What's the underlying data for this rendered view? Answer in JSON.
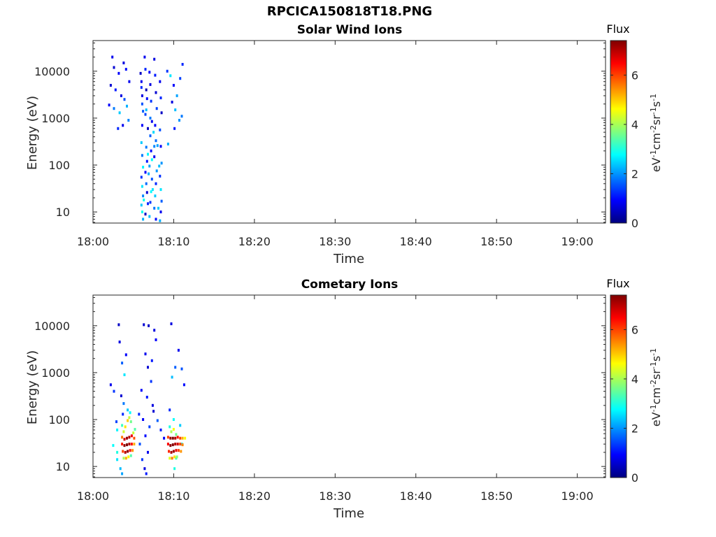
{
  "figure": {
    "title": "RPCICA150818T18.PNG"
  },
  "colormap": {
    "stops": [
      "#00007f",
      "#0000ff",
      "#007fff",
      "#00ffff",
      "#7fff7f",
      "#ffff00",
      "#ff7f00",
      "#ff0000",
      "#7f0000"
    ],
    "range": [
      0,
      7.4
    ]
  },
  "chart_data": [
    {
      "type": "heatmap",
      "title": "Solar Wind Ions",
      "xlabel": "Time",
      "ylabel": "Energy (eV)",
      "x_ticks": [
        "18:00",
        "18:10",
        "18:20",
        "18:30",
        "18:40",
        "18:50",
        "19:00"
      ],
      "x_range_minutes": [
        0,
        63.5
      ],
      "y_scale": "log",
      "y_range": [
        5.8,
        45000
      ],
      "y_ticks": [
        10,
        100,
        1000,
        10000
      ],
      "y_tick_labels": [
        "10",
        "100",
        "1000",
        "10000"
      ],
      "colorbar": {
        "title": "Flux",
        "label": "eV-1cm-2sr-1s-1",
        "ticks": [
          0,
          2,
          4,
          6
        ],
        "range": [
          0,
          7.4
        ]
      },
      "data_description": "Sparse low-flux (0-3) measurements between 18:02 and 18:11; dense column at 18:05-18:08 spanning 6 eV to 25 keV",
      "cells": [
        [
          2.4,
          20000,
          0.8
        ],
        [
          2.6,
          12000,
          0.6
        ],
        [
          3.2,
          9000,
          0.9
        ],
        [
          3.8,
          15000,
          0.7
        ],
        [
          4.1,
          11000,
          1.0
        ],
        [
          4.5,
          6000,
          0.8
        ],
        [
          2.2,
          5000,
          0.6
        ],
        [
          2.8,
          4000,
          1.1
        ],
        [
          3.5,
          3000,
          0.7
        ],
        [
          3.9,
          2500,
          1.5
        ],
        [
          4.2,
          1800,
          2.2
        ],
        [
          2.0,
          1900,
          0.9
        ],
        [
          2.6,
          1600,
          1.8
        ],
        [
          3.3,
          1300,
          2.4
        ],
        [
          3.7,
          700,
          0.8
        ],
        [
          3.1,
          600,
          1.2
        ],
        [
          4.4,
          900,
          1.9
        ],
        [
          9.2,
          10000,
          1.3
        ],
        [
          9.6,
          8000,
          2.6
        ],
        [
          10.0,
          5000,
          0.9
        ],
        [
          10.4,
          3000,
          2.1
        ],
        [
          10.8,
          7000,
          1.4
        ],
        [
          11.1,
          14000,
          1.2
        ],
        [
          10.2,
          1500,
          2.3
        ],
        [
          10.7,
          900,
          2.0
        ],
        [
          9.8,
          2200,
          0.7
        ],
        [
          11.0,
          1100,
          1.8
        ],
        [
          9.3,
          280,
          2.2
        ],
        [
          10.1,
          600,
          1.1
        ],
        [
          5.9,
          9000,
          0.5
        ],
        [
          6.0,
          6000,
          0.8
        ],
        [
          6.0,
          4500,
          1.2
        ],
        [
          6.1,
          3000,
          0.7
        ],
        [
          6.2,
          1400,
          1.6
        ],
        [
          6.1,
          700,
          0.9
        ],
        [
          6.0,
          300,
          2.4
        ],
        [
          6.1,
          160,
          1.8
        ],
        [
          6.2,
          90,
          2.7
        ],
        [
          6.0,
          55,
          1.3
        ],
        [
          6.1,
          35,
          2.6
        ],
        [
          6.2,
          22,
          1.9
        ],
        [
          6.0,
          14,
          2.4
        ],
        [
          6.1,
          10,
          2.9
        ],
        [
          6.2,
          7,
          2.2
        ],
        [
          6.4,
          20000,
          0.8
        ],
        [
          6.5,
          11000,
          1.2
        ],
        [
          6.6,
          4000,
          0.4
        ],
        [
          6.7,
          2600,
          1.0
        ],
        [
          6.5,
          1200,
          1.4
        ],
        [
          6.8,
          600,
          0.5
        ],
        [
          6.6,
          240,
          1.8
        ],
        [
          6.7,
          120,
          1.1
        ],
        [
          6.5,
          70,
          0.9
        ],
        [
          6.6,
          40,
          1.7
        ],
        [
          6.7,
          26,
          0.6
        ],
        [
          6.8,
          15,
          1.2
        ],
        [
          6.5,
          9,
          0.5
        ],
        [
          7.0,
          9500,
          0.9
        ],
        [
          7.1,
          5200,
          0.7
        ],
        [
          7.2,
          2300,
          1.3
        ],
        [
          7.3,
          850,
          0.8
        ],
        [
          7.1,
          420,
          1.6
        ],
        [
          7.2,
          200,
          1.0
        ],
        [
          7.0,
          95,
          2.1
        ],
        [
          7.3,
          50,
          1.5
        ],
        [
          7.2,
          27,
          2.8
        ],
        [
          7.1,
          16,
          1.3
        ],
        [
          7.0,
          8,
          2.3
        ],
        [
          7.6,
          18000,
          0.7
        ],
        [
          7.7,
          8200,
          1.1
        ],
        [
          7.8,
          3500,
          0.6
        ],
        [
          7.9,
          1600,
          1.4
        ],
        [
          7.7,
          700,
          0.9
        ],
        [
          7.8,
          330,
          1.7
        ],
        [
          7.6,
          150,
          0.8
        ],
        [
          7.9,
          75,
          2.0
        ],
        [
          7.8,
          40,
          1.2
        ],
        [
          7.7,
          22,
          2.4
        ],
        [
          7.6,
          12,
          1.8
        ],
        [
          7.8,
          7,
          1.0
        ],
        [
          8.3,
          6000,
          0.8
        ],
        [
          8.4,
          2700,
          1.2
        ],
        [
          8.5,
          1300,
          0.5
        ],
        [
          8.3,
          560,
          1.5
        ],
        [
          8.4,
          250,
          0.9
        ],
        [
          8.5,
          110,
          2.0
        ],
        [
          8.3,
          58,
          1.3
        ],
        [
          8.4,
          30,
          2.6
        ],
        [
          8.5,
          17,
          1.6
        ],
        [
          8.4,
          10,
          0.8
        ],
        [
          8.3,
          6.5,
          2.2
        ],
        [
          6.1,
          2000,
          1.5
        ],
        [
          6.6,
          1500,
          2.3
        ],
        [
          7.1,
          1000,
          1.8
        ],
        [
          7.5,
          500,
          2.5
        ],
        [
          8.0,
          260,
          2.1
        ],
        [
          7.3,
          130,
          2.8
        ],
        [
          6.9,
          65,
          2.2
        ],
        [
          7.4,
          30,
          2.6
        ],
        [
          6.3,
          18,
          2.9
        ],
        [
          8.1,
          12,
          2.4
        ],
        [
          7.6,
          250,
          1.9
        ],
        [
          6.8,
          170,
          2.7
        ],
        [
          8.2,
          95,
          2.3
        ]
      ]
    },
    {
      "type": "heatmap",
      "title": "Cometary Ions",
      "xlabel": "Time",
      "ylabel": "Energy (eV)",
      "x_ticks": [
        "18:00",
        "18:10",
        "18:20",
        "18:30",
        "18:40",
        "18:50",
        "19:00"
      ],
      "x_range_minutes": [
        0,
        63.5
      ],
      "y_scale": "log",
      "y_range": [
        5.8,
        45000
      ],
      "y_ticks": [
        10,
        100,
        1000,
        10000
      ],
      "y_tick_labels": [
        "10",
        "100",
        "1000",
        "10000"
      ],
      "colorbar": {
        "title": "Flux",
        "label": "eV-1cm-2sr-1s-1",
        "ticks": [
          0,
          2,
          4,
          6
        ],
        "range": [
          0,
          7.4
        ]
      },
      "data_description": "Sparse low-flux points 18:02-18:12; high-flux (5-7) cometary ion bursts at 18:03-18:05 and 18:09-18:11 around 20-60 eV",
      "cells": [
        [
          3.2,
          10500,
          0.5
        ],
        [
          3.3,
          4500,
          0.7
        ],
        [
          4.1,
          2400,
          0.9
        ],
        [
          3.6,
          1600,
          1.6
        ],
        [
          3.9,
          900,
          2.6
        ],
        [
          2.2,
          550,
          0.8
        ],
        [
          2.6,
          400,
          1.3
        ],
        [
          3.5,
          320,
          0.6
        ],
        [
          3.8,
          220,
          1.8
        ],
        [
          4.3,
          160,
          2.4
        ],
        [
          2.9,
          90,
          1.4
        ],
        [
          3.0,
          60,
          2.7
        ],
        [
          3.7,
          130,
          1.2
        ],
        [
          2.5,
          28,
          2.8
        ],
        [
          3.0,
          20,
          3.0
        ],
        [
          3.0,
          14,
          2.6
        ],
        [
          3.4,
          9,
          2.3
        ],
        [
          3.6,
          7,
          2.1
        ],
        [
          6.3,
          10500,
          0.6
        ],
        [
          6.9,
          10000,
          0.5
        ],
        [
          7.6,
          8000,
          0.7
        ],
        [
          7.8,
          5000,
          0.9
        ],
        [
          6.5,
          2500,
          0.8
        ],
        [
          7.3,
          1800,
          1.1
        ],
        [
          6.8,
          1300,
          0.6
        ],
        [
          7.2,
          650,
          1.3
        ],
        [
          6.0,
          420,
          0.9
        ],
        [
          6.7,
          300,
          1.1
        ],
        [
          7.4,
          200,
          0.7
        ],
        [
          5.7,
          130,
          1.2
        ],
        [
          6.2,
          100,
          0.9
        ],
        [
          7.0,
          70,
          1.4
        ],
        [
          6.5,
          45,
          1.0
        ],
        [
          5.8,
          30,
          1.5
        ],
        [
          6.8,
          20,
          0.8
        ],
        [
          6.1,
          14,
          1.3
        ],
        [
          6.4,
          9,
          0.7
        ],
        [
          6.6,
          7,
          1.1
        ],
        [
          7.5,
          150,
          0.6
        ],
        [
          8.0,
          95,
          1.6
        ],
        [
          8.4,
          60,
          1.1
        ],
        [
          8.8,
          40,
          0.9
        ],
        [
          9.7,
          11000,
          0.7
        ],
        [
          10.6,
          3000,
          0.8
        ],
        [
          10.2,
          1300,
          1.6
        ],
        [
          9.8,
          800,
          2.3
        ],
        [
          11.0,
          1200,
          1.5
        ],
        [
          11.3,
          550,
          1.0
        ],
        [
          9.5,
          160,
          1.2
        ],
        [
          10.0,
          100,
          2.8
        ],
        [
          10.8,
          75,
          2.4
        ],
        [
          11.0,
          30,
          2.7
        ],
        [
          10.3,
          15,
          3.2
        ],
        [
          10.1,
          9,
          3.0
        ],
        [
          3.6,
          75,
          3.2
        ],
        [
          3.8,
          55,
          4.3
        ],
        [
          4.0,
          70,
          4.8
        ],
        [
          4.3,
          95,
          5.0
        ],
        [
          4.5,
          110,
          4.2
        ],
        [
          4.7,
          90,
          3.6
        ],
        [
          3.6,
          42,
          5.6
        ],
        [
          3.9,
          38,
          6.8
        ],
        [
          4.2,
          40,
          7.2
        ],
        [
          4.5,
          42,
          7.0
        ],
        [
          4.8,
          45,
          6.6
        ],
        [
          5.1,
          40,
          5.9
        ],
        [
          3.6,
          30,
          6.3
        ],
        [
          3.9,
          28,
          7.3
        ],
        [
          4.2,
          29,
          7.4
        ],
        [
          4.5,
          30,
          7.1
        ],
        [
          4.8,
          30,
          6.4
        ],
        [
          5.1,
          30,
          5.2
        ],
        [
          3.7,
          21,
          6.0
        ],
        [
          4.0,
          20,
          7.0
        ],
        [
          4.3,
          21,
          7.3
        ],
        [
          4.6,
          22,
          6.5
        ],
        [
          4.9,
          22,
          5.4
        ],
        [
          3.8,
          15,
          4.0
        ],
        [
          4.1,
          15,
          5.2
        ],
        [
          4.4,
          16,
          4.6
        ],
        [
          4.7,
          17,
          3.4
        ],
        [
          5.0,
          52,
          4.2
        ],
        [
          5.2,
          62,
          3.4
        ],
        [
          4.6,
          140,
          2.8
        ],
        [
          9.5,
          70,
          3.0
        ],
        [
          9.7,
          55,
          4.0
        ],
        [
          10.0,
          62,
          4.6
        ],
        [
          10.3,
          48,
          3.6
        ],
        [
          9.3,
          42,
          6.0
        ],
        [
          9.6,
          40,
          7.2
        ],
        [
          9.9,
          40,
          7.4
        ],
        [
          10.2,
          40,
          7.0
        ],
        [
          10.5,
          42,
          6.4
        ],
        [
          10.8,
          40,
          6.0
        ],
        [
          11.1,
          40,
          5.2
        ],
        [
          11.4,
          40,
          4.6
        ],
        [
          9.3,
          30,
          6.5
        ],
        [
          9.6,
          28,
          7.3
        ],
        [
          9.9,
          29,
          7.4
        ],
        [
          10.2,
          30,
          7.0
        ],
        [
          10.5,
          30,
          6.8
        ],
        [
          10.8,
          30,
          6.0
        ],
        [
          11.1,
          29,
          5.5
        ],
        [
          9.4,
          21,
          6.2
        ],
        [
          9.7,
          20,
          7.1
        ],
        [
          10.0,
          21,
          7.2
        ],
        [
          10.3,
          22,
          6.6
        ],
        [
          10.6,
          22,
          6.0
        ],
        [
          10.9,
          21,
          5.4
        ],
        [
          9.5,
          15,
          4.4
        ],
        [
          9.8,
          15,
          5.6
        ],
        [
          10.1,
          16,
          4.8
        ],
        [
          10.4,
          16,
          3.8
        ]
      ]
    }
  ]
}
